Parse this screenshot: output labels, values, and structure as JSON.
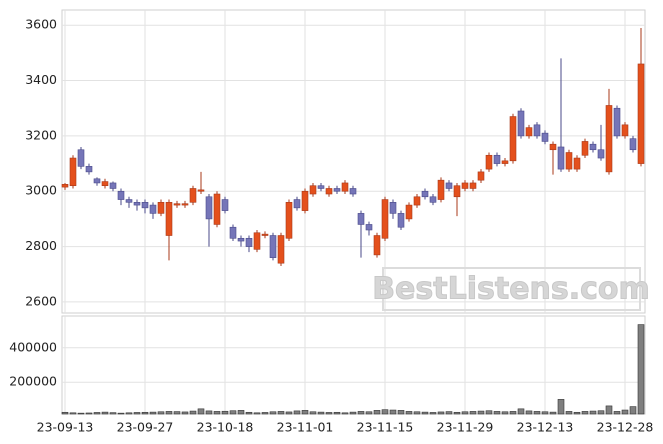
{
  "chart_data": [
    {
      "type": "candlestick",
      "categories": [
        "23-09-13",
        null,
        null,
        null,
        null,
        null,
        null,
        null,
        null,
        null,
        "23-09-27",
        null,
        null,
        null,
        null,
        null,
        null,
        null,
        null,
        null,
        "23-10-18",
        null,
        null,
        null,
        null,
        null,
        null,
        null,
        null,
        null,
        "23-11-01",
        null,
        null,
        null,
        null,
        null,
        null,
        null,
        null,
        null,
        "23-11-15",
        null,
        null,
        null,
        null,
        null,
        null,
        null,
        null,
        null,
        "23-11-29",
        null,
        null,
        null,
        null,
        null,
        null,
        null,
        null,
        null,
        "23-12-13",
        null,
        null,
        null,
        null,
        null,
        null,
        null,
        null,
        null,
        "23-12-28",
        null,
        null
      ],
      "open": [
        3015,
        3020,
        3150,
        3090,
        3045,
        3020,
        3030,
        3000,
        2970,
        2960,
        2960,
        2950,
        2920,
        2840,
        2950,
        2950,
        2960,
        3000,
        2980,
        2880,
        2970,
        2870,
        2830,
        2830,
        2790,
        2840,
        2840,
        2740,
        2830,
        2970,
        2930,
        2990,
        3020,
        2990,
        3010,
        3000,
        3010,
        2920,
        2880,
        2770,
        2830,
        2960,
        2920,
        2900,
        2950,
        3000,
        2980,
        2970,
        3030,
        2980,
        3010,
        3010,
        3040,
        3080,
        3130,
        3100,
        3110,
        3290,
        3200,
        3240,
        3210,
        3150,
        3160,
        3080,
        3080,
        3130,
        3170,
        3150,
        3070,
        3300,
        3200,
        3190,
        3100
      ],
      "high": [
        3030,
        3130,
        3160,
        3100,
        3050,
        3045,
        3035,
        3010,
        2980,
        2970,
        2970,
        2960,
        2970,
        2970,
        2965,
        2965,
        3020,
        3070,
        2990,
        3000,
        2980,
        2880,
        2840,
        2840,
        2860,
        2855,
        2850,
        2850,
        2970,
        2980,
        3010,
        3030,
        3030,
        3020,
        3020,
        3040,
        3020,
        2930,
        2890,
        2850,
        2980,
        2970,
        2930,
        2960,
        2990,
        3010,
        2990,
        3050,
        3040,
        3030,
        3040,
        3040,
        3080,
        3140,
        3140,
        3120,
        3280,
        3300,
        3240,
        3250,
        3220,
        3180,
        3480,
        3150,
        3130,
        3190,
        3180,
        3240,
        3370,
        3310,
        3250,
        3200,
        3590
      ],
      "low": [
        3005,
        3010,
        3080,
        3060,
        3020,
        3010,
        3000,
        2950,
        2940,
        2930,
        2920,
        2900,
        2910,
        2750,
        2940,
        2940,
        2950,
        2990,
        2800,
        2870,
        2920,
        2820,
        2800,
        2780,
        2780,
        2830,
        2750,
        2730,
        2820,
        2930,
        2920,
        2980,
        3000,
        2980,
        2990,
        2990,
        2980,
        2760,
        2840,
        2760,
        2820,
        2900,
        2860,
        2890,
        2940,
        2970,
        2950,
        2960,
        3000,
        2910,
        3000,
        3000,
        3030,
        3070,
        3090,
        3090,
        3100,
        3190,
        3190,
        3190,
        3170,
        3060,
        3070,
        3070,
        3070,
        3120,
        3140,
        3110,
        3060,
        3190,
        3190,
        3140,
        3090
      ],
      "close": [
        3025,
        3120,
        3090,
        3070,
        3030,
        3035,
        3010,
        2970,
        2960,
        2950,
        2940,
        2920,
        2960,
        2960,
        2955,
        2955,
        3010,
        3005,
        2900,
        2990,
        2930,
        2830,
        2820,
        2800,
        2850,
        2845,
        2760,
        2840,
        2960,
        2940,
        3000,
        3020,
        3010,
        3010,
        3000,
        3030,
        2990,
        2880,
        2860,
        2840,
        2970,
        2920,
        2870,
        2950,
        2980,
        2980,
        2960,
        3040,
        3010,
        3020,
        3030,
        3030,
        3070,
        3130,
        3100,
        3110,
        3270,
        3200,
        3230,
        3200,
        3180,
        3170,
        3080,
        3140,
        3120,
        3180,
        3150,
        3120,
        3310,
        3200,
        3240,
        3150,
        3460
      ],
      "up_color": "#e4501c",
      "down_color": "#7575b8",
      "ylim": [
        2560,
        3655
      ],
      "yticks": [
        2600,
        2800,
        3000,
        3200,
        3400,
        3600
      ],
      "grid": true,
      "watermark": "BestListens.com"
    },
    {
      "type": "bar",
      "values": [
        25000,
        22000,
        20000,
        21000,
        24000,
        26000,
        23000,
        20000,
        22000,
        24000,
        25000,
        26000,
        28000,
        30000,
        29000,
        27000,
        32000,
        45000,
        33000,
        30000,
        31000,
        34000,
        36000,
        25000,
        22000,
        24000,
        28000,
        30000,
        27000,
        33000,
        36000,
        28000,
        26000,
        24000,
        25000,
        22000,
        26000,
        30000,
        28000,
        36000,
        40000,
        38000,
        36000,
        30000,
        28000,
        26000,
        24000,
        27000,
        29000,
        25000,
        28000,
        30000,
        32000,
        34000,
        30000,
        28000,
        30000,
        45000,
        33000,
        30000,
        28000,
        26000,
        100000,
        30000,
        25000,
        30000,
        32000,
        34000,
        62000,
        30000,
        38000,
        58000,
        535000
      ],
      "color": "#7f7f7f",
      "ylim": [
        15000,
        585000
      ],
      "yticks": [
        200000,
        400000
      ],
      "grid": true
    }
  ]
}
